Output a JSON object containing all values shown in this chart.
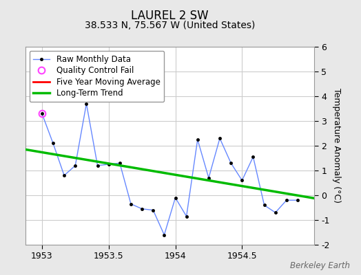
{
  "title": "LAUREL 2 SW",
  "subtitle": "38.533 N, 75.567 W (United States)",
  "ylabel": "Temperature Anomaly (°C)",
  "watermark": "Berkeley Earth",
  "xlim": [
    1952.875,
    1955.04
  ],
  "ylim": [
    -2,
    6
  ],
  "yticks": [
    -2,
    -1,
    0,
    1,
    2,
    3,
    4,
    5,
    6
  ],
  "xticks": [
    1953,
    1953.5,
    1954,
    1954.5
  ],
  "background_color": "#e8e8e8",
  "plot_bg_color": "#ffffff",
  "raw_x": [
    1953.0,
    1953.0833,
    1953.1667,
    1953.25,
    1953.3333,
    1953.4167,
    1953.5,
    1953.5833,
    1953.6667,
    1953.75,
    1953.8333,
    1953.9167,
    1954.0,
    1954.0833,
    1954.1667,
    1954.25,
    1954.3333,
    1954.4167,
    1954.5,
    1954.5833,
    1954.6667,
    1954.75,
    1954.8333,
    1954.9167
  ],
  "raw_y": [
    3.3,
    2.1,
    0.8,
    1.2,
    3.7,
    1.2,
    1.25,
    1.3,
    -0.35,
    -0.55,
    -0.6,
    -1.6,
    -0.1,
    -0.85,
    2.25,
    0.7,
    2.3,
    1.3,
    0.6,
    1.55,
    -0.4,
    -0.7,
    -0.2,
    -0.2
  ],
  "qc_fail_x": [
    1953.0
  ],
  "qc_fail_y": [
    3.3
  ],
  "trend_x": [
    1952.875,
    1955.04
  ],
  "trend_y": [
    1.85,
    -0.12
  ],
  "raw_line_color": "#6688ff",
  "raw_marker_color": "#000000",
  "qc_color": "#ff44ff",
  "trend_color": "#00bb00",
  "ma_color": "#ff0000",
  "grid_color": "#cccccc",
  "title_fontsize": 12,
  "subtitle_fontsize": 10,
  "label_fontsize": 9,
  "tick_fontsize": 9,
  "legend_fontsize": 8.5
}
